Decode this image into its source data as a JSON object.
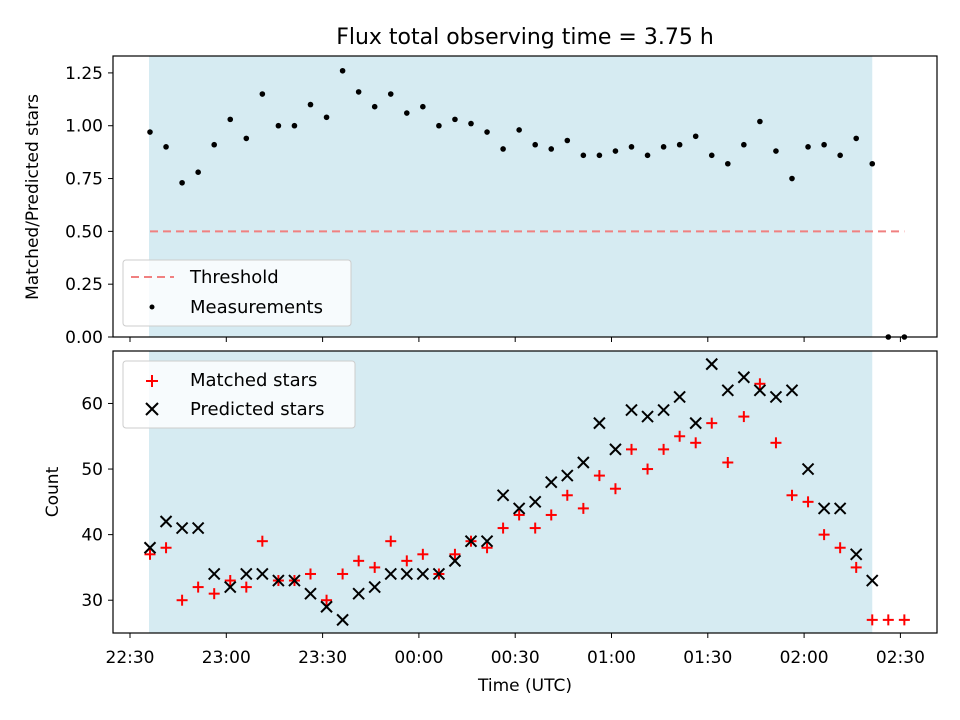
{
  "chart_data": [
    {
      "type": "scatter",
      "title": "Flux total observing time = 3.75 h",
      "ylabel": "Matched/Predicted stars",
      "xlabel": "",
      "x_ticks": [
        "22:30",
        "23:00",
        "23:30",
        "00:00",
        "00:30",
        "01:00",
        "01:30",
        "02:00",
        "02:30"
      ],
      "ylim": [
        0,
        1.33
      ],
      "y_ticks": [
        "0.00",
        "0.25",
        "0.50",
        "0.75",
        "1.00",
        "1.25"
      ],
      "grid": false,
      "legend_position": "lower-left",
      "shaded_region": {
        "start_index": 0,
        "end_index": 45,
        "color": "#add8e6"
      },
      "threshold": {
        "name": "Threshold",
        "value": 0.5,
        "color": "#f08080"
      },
      "series": [
        {
          "name": "Measurements",
          "color": "#000000",
          "x_index": [
            0,
            1,
            2,
            3,
            4,
            5,
            6,
            7,
            8,
            9,
            10,
            11,
            12,
            13,
            14,
            15,
            16,
            17,
            18,
            19,
            20,
            21,
            22,
            23,
            24,
            25,
            26,
            27,
            28,
            29,
            30,
            31,
            32,
            33,
            34,
            35,
            36,
            37,
            38,
            39,
            40,
            41,
            42,
            43,
            44,
            45,
            46,
            47
          ],
          "values": [
            0.97,
            0.9,
            0.73,
            0.78,
            0.91,
            1.03,
            0.94,
            1.15,
            1.0,
            1.0,
            1.1,
            1.04,
            1.26,
            1.16,
            1.09,
            1.15,
            1.06,
            1.09,
            1.0,
            1.03,
            1.01,
            0.97,
            0.89,
            0.98,
            0.91,
            0.89,
            0.93,
            0.86,
            0.86,
            0.88,
            0.9,
            0.86,
            0.9,
            0.91,
            0.95,
            0.86,
            0.82,
            0.91,
            1.02,
            0.88,
            0.75,
            0.9,
            0.91,
            0.86,
            0.94,
            0.82,
            0.0,
            0.0
          ]
        }
      ]
    },
    {
      "type": "scatter",
      "title": "",
      "ylabel": "Count",
      "xlabel": "Time (UTC)",
      "x_ticks": [
        "22:30",
        "23:00",
        "23:30",
        "00:00",
        "00:30",
        "01:00",
        "01:30",
        "02:00",
        "02:30"
      ],
      "ylim": [
        25,
        68
      ],
      "y_ticks": [
        "30",
        "40",
        "50",
        "60"
      ],
      "grid": false,
      "legend_position": "top-left",
      "shaded_region": {
        "start_index": 0,
        "end_index": 45,
        "color": "#add8e6"
      },
      "series": [
        {
          "name": "Matched stars",
          "marker": "plus",
          "color": "#ff0000",
          "x_index": [
            0,
            1,
            2,
            3,
            4,
            5,
            6,
            7,
            8,
            9,
            10,
            11,
            12,
            13,
            14,
            15,
            16,
            17,
            18,
            19,
            20,
            21,
            22,
            23,
            24,
            25,
            26,
            27,
            28,
            29,
            30,
            31,
            32,
            33,
            34,
            35,
            36,
            37,
            38,
            39,
            40,
            41,
            42,
            43,
            44,
            45,
            46,
            47
          ],
          "values": [
            37,
            38,
            30,
            32,
            31,
            33,
            32,
            39,
            33,
            33,
            34,
            30,
            34,
            36,
            35,
            39,
            36,
            37,
            34,
            37,
            39,
            38,
            41,
            43,
            41,
            43,
            46,
            44,
            49,
            47,
            53,
            50,
            53,
            55,
            54,
            57,
            51,
            58,
            63,
            54,
            46,
            45,
            40,
            38,
            35,
            27,
            27,
            27
          ]
        },
        {
          "name": "Predicted stars",
          "marker": "x",
          "color": "#000000",
          "x_index": [
            0,
            1,
            2,
            3,
            4,
            5,
            6,
            7,
            8,
            9,
            10,
            11,
            12,
            13,
            14,
            15,
            16,
            17,
            18,
            19,
            20,
            21,
            22,
            23,
            24,
            25,
            26,
            27,
            28,
            29,
            30,
            31,
            32,
            33,
            34,
            35,
            36,
            37,
            38,
            39,
            40,
            41,
            42,
            43,
            44,
            45
          ],
          "values": [
            38,
            42,
            41,
            41,
            34,
            32,
            34,
            34,
            33,
            33,
            31,
            29,
            27,
            31,
            32,
            34,
            34,
            34,
            34,
            36,
            39,
            39,
            46,
            44,
            45,
            48,
            49,
            51,
            57,
            53,
            59,
            58,
            59,
            61,
            57,
            66,
            62,
            64,
            62,
            61,
            62,
            50,
            44,
            44,
            37,
            33
          ]
        }
      ]
    }
  ]
}
